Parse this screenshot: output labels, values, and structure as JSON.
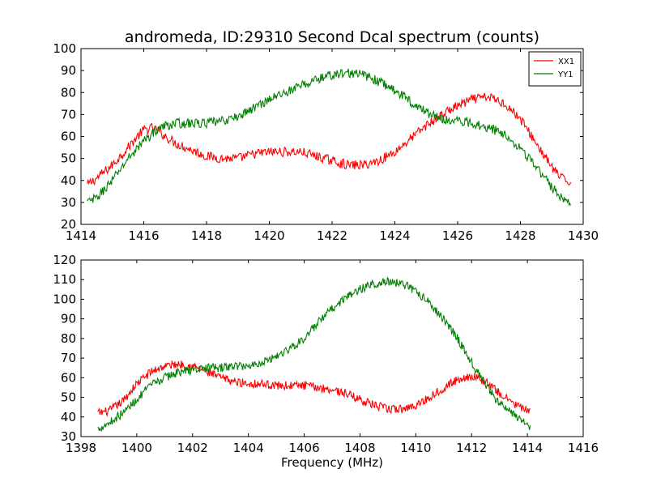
{
  "chart_data": [
    {
      "type": "line",
      "title": "andromeda, ID:29310 Second Dcal spectrum (counts)",
      "xlabel": "",
      "ylabel": "",
      "xlim": [
        1414,
        1430
      ],
      "ylim": [
        20,
        100
      ],
      "xticks": [
        1414,
        1416,
        1418,
        1420,
        1422,
        1424,
        1426,
        1428,
        1430
      ],
      "yticks": [
        20,
        30,
        40,
        50,
        60,
        70,
        80,
        90,
        100
      ],
      "legend": {
        "placement": "top-right"
      },
      "series": [
        {
          "name": "XX1",
          "color": "#ff0000",
          "noise": 2.2,
          "points": [
            [
              1414.2,
              38
            ],
            [
              1414.5,
              41
            ],
            [
              1415.0,
              47
            ],
            [
              1415.5,
              55
            ],
            [
              1415.8,
              60
            ],
            [
              1416.0,
              63
            ],
            [
              1416.3,
              64
            ],
            [
              1416.6,
              61
            ],
            [
              1417.0,
              57
            ],
            [
              1417.5,
              54
            ],
            [
              1418.0,
              51
            ],
            [
              1418.5,
              50
            ],
            [
              1419.0,
              50
            ],
            [
              1419.5,
              52
            ],
            [
              1420.0,
              53
            ],
            [
              1420.5,
              53
            ],
            [
              1421.0,
              53
            ],
            [
              1421.5,
              51
            ],
            [
              1422.0,
              49
            ],
            [
              1422.5,
              47
            ],
            [
              1423.0,
              47
            ],
            [
              1423.5,
              49
            ],
            [
              1424.0,
              53
            ],
            [
              1424.5,
              59
            ],
            [
              1425.0,
              65
            ],
            [
              1425.5,
              70
            ],
            [
              1426.0,
              74
            ],
            [
              1426.5,
              77
            ],
            [
              1427.0,
              78
            ],
            [
              1427.5,
              75
            ],
            [
              1428.0,
              68
            ],
            [
              1428.5,
              57
            ],
            [
              1429.0,
              46
            ],
            [
              1429.3,
              41
            ],
            [
              1429.6,
              39
            ]
          ]
        },
        {
          "name": "YY1",
          "color": "#008000",
          "noise": 2.2,
          "points": [
            [
              1414.2,
              30
            ],
            [
              1414.5,
              32
            ],
            [
              1415.0,
              40
            ],
            [
              1415.5,
              50
            ],
            [
              1416.0,
              58
            ],
            [
              1416.5,
              64
            ],
            [
              1417.0,
              66
            ],
            [
              1417.5,
              66
            ],
            [
              1418.0,
              66
            ],
            [
              1418.5,
              67
            ],
            [
              1419.0,
              69
            ],
            [
              1419.5,
              73
            ],
            [
              1420.0,
              77
            ],
            [
              1420.5,
              80
            ],
            [
              1421.0,
              83
            ],
            [
              1421.5,
              86
            ],
            [
              1422.0,
              88
            ],
            [
              1422.5,
              89
            ],
            [
              1423.0,
              88
            ],
            [
              1423.5,
              85
            ],
            [
              1424.0,
              81
            ],
            [
              1424.5,
              76
            ],
            [
              1425.0,
              71
            ],
            [
              1425.5,
              68
            ],
            [
              1426.0,
              67
            ],
            [
              1426.5,
              66
            ],
            [
              1427.0,
              64
            ],
            [
              1427.5,
              61
            ],
            [
              1428.0,
              55
            ],
            [
              1428.5,
              46
            ],
            [
              1429.0,
              37
            ],
            [
              1429.3,
              32
            ],
            [
              1429.6,
              30
            ]
          ]
        }
      ]
    },
    {
      "type": "line",
      "title": "",
      "xlabel": "Frequency (MHz)",
      "ylabel": "",
      "xlim": [
        1398,
        1416
      ],
      "ylim": [
        30,
        120
      ],
      "xticks": [
        1398,
        1400,
        1402,
        1404,
        1406,
        1408,
        1410,
        1412,
        1414,
        1416
      ],
      "yticks": [
        30,
        40,
        50,
        60,
        70,
        80,
        90,
        100,
        110,
        120
      ],
      "series": [
        {
          "color": "#ff0000",
          "noise": 2.2,
          "points": [
            [
              1398.6,
              42
            ],
            [
              1399.0,
              43
            ],
            [
              1399.5,
              48
            ],
            [
              1400.0,
              57
            ],
            [
              1400.5,
              63
            ],
            [
              1401.0,
              66
            ],
            [
              1401.5,
              67
            ],
            [
              1402.0,
              66
            ],
            [
              1402.5,
              63
            ],
            [
              1403.0,
              60
            ],
            [
              1403.5,
              58
            ],
            [
              1404.0,
              57
            ],
            [
              1404.5,
              57
            ],
            [
              1405.0,
              56
            ],
            [
              1405.5,
              56
            ],
            [
              1406.0,
              56
            ],
            [
              1406.5,
              55
            ],
            [
              1407.0,
              54
            ],
            [
              1407.5,
              52
            ],
            [
              1408.0,
              49
            ],
            [
              1408.5,
              46
            ],
            [
              1409.0,
              44
            ],
            [
              1409.5,
              44
            ],
            [
              1410.0,
              46
            ],
            [
              1410.5,
              50
            ],
            [
              1411.0,
              55
            ],
            [
              1411.5,
              59
            ],
            [
              1412.0,
              61
            ],
            [
              1412.5,
              58
            ],
            [
              1413.0,
              52
            ],
            [
              1413.5,
              47
            ],
            [
              1414.0,
              43
            ],
            [
              1414.1,
              42
            ]
          ]
        },
        {
          "color": "#008000",
          "noise": 2.2,
          "points": [
            [
              1398.6,
              34
            ],
            [
              1399.0,
              37
            ],
            [
              1399.5,
              42
            ],
            [
              1400.0,
              49
            ],
            [
              1400.5,
              56
            ],
            [
              1401.0,
              60
            ],
            [
              1401.5,
              63
            ],
            [
              1402.0,
              64
            ],
            [
              1402.5,
              65
            ],
            [
              1403.0,
              65
            ],
            [
              1403.5,
              66
            ],
            [
              1404.0,
              66
            ],
            [
              1404.5,
              68
            ],
            [
              1405.0,
              71
            ],
            [
              1405.5,
              75
            ],
            [
              1406.0,
              80
            ],
            [
              1406.5,
              88
            ],
            [
              1407.0,
              95
            ],
            [
              1407.5,
              101
            ],
            [
              1408.0,
              105
            ],
            [
              1408.5,
              108
            ],
            [
              1409.0,
              109
            ],
            [
              1409.5,
              108
            ],
            [
              1410.0,
              104
            ],
            [
              1410.5,
              98
            ],
            [
              1411.0,
              90
            ],
            [
              1411.5,
              80
            ],
            [
              1412.0,
              68
            ],
            [
              1412.5,
              56
            ],
            [
              1413.0,
              47
            ],
            [
              1413.5,
              41
            ],
            [
              1414.0,
              37
            ],
            [
              1414.1,
              35
            ]
          ]
        }
      ]
    }
  ]
}
